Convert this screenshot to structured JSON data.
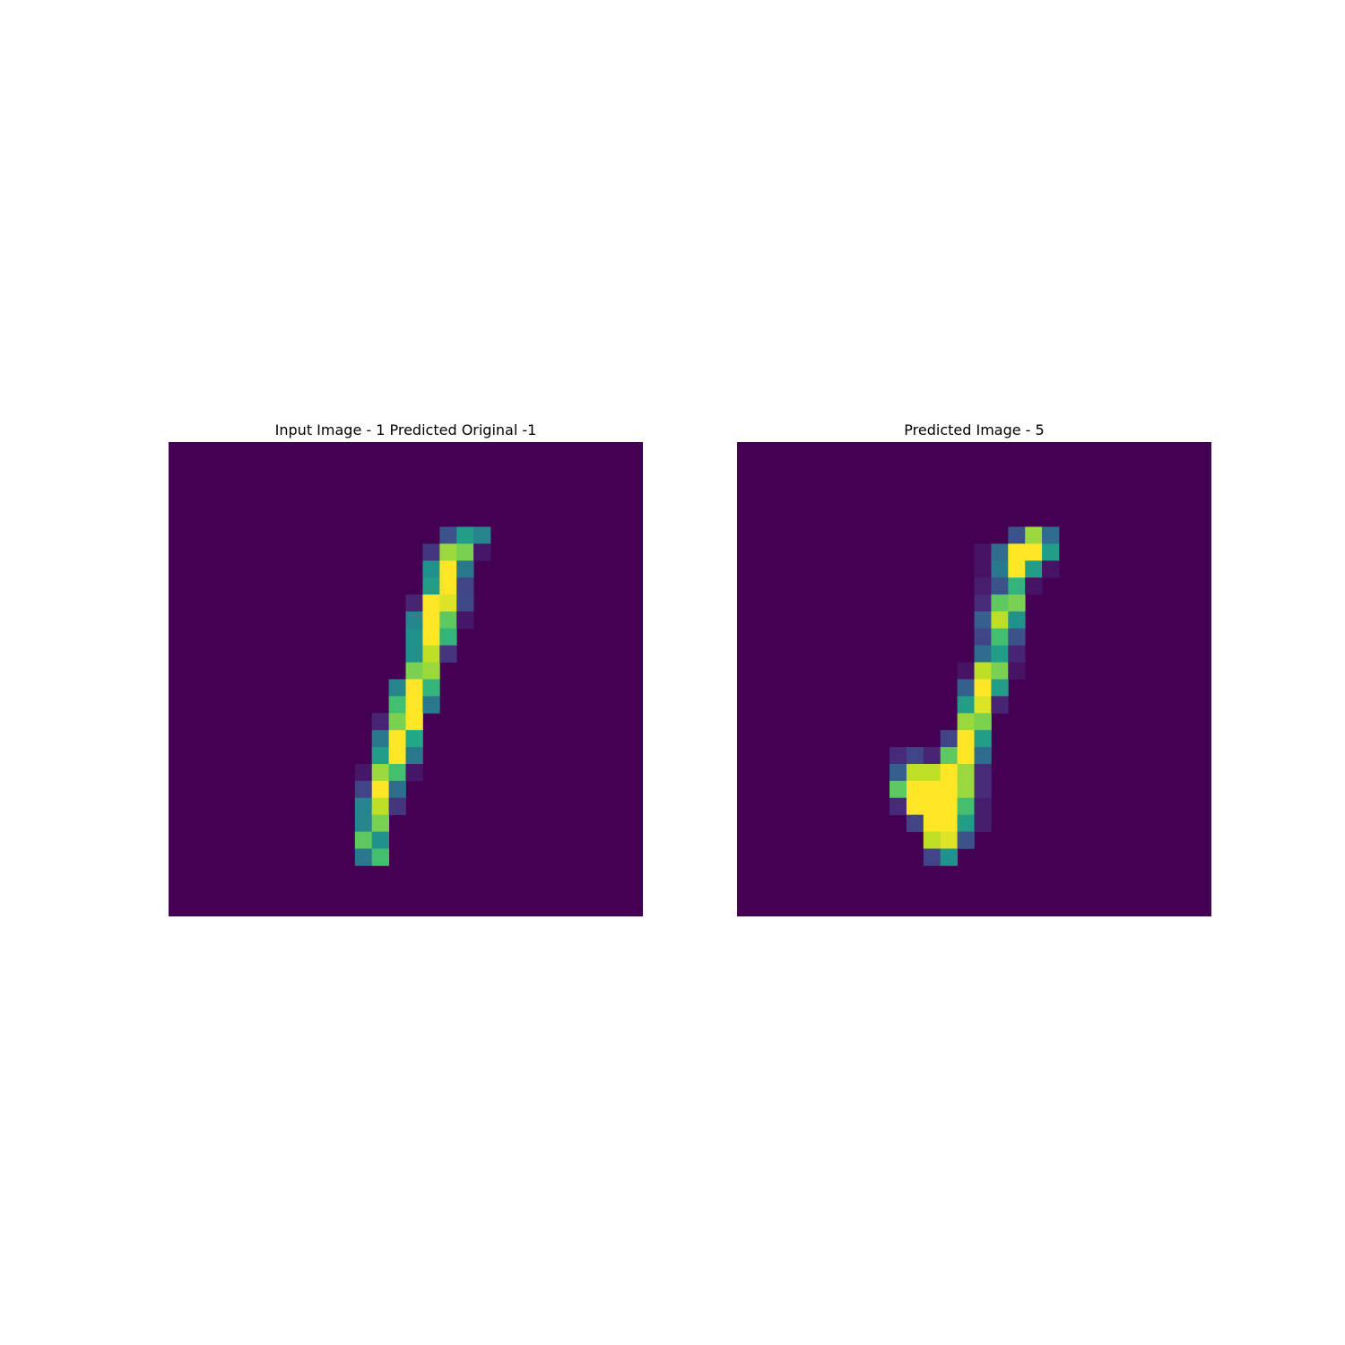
{
  "chart_data": [
    {
      "type": "heatmap",
      "title": "Input Image - 1 Predicted Original -1",
      "colormap": "viridis",
      "axes_visible": false,
      "grid": false,
      "shape": [
        28,
        28
      ],
      "value_range": [
        0,
        1
      ],
      "pixels": [
        {
          "r": 5,
          "c": 16,
          "v": 0.25
        },
        {
          "r": 5,
          "c": 17,
          "v": 0.55
        },
        {
          "r": 5,
          "c": 18,
          "v": 0.45
        },
        {
          "r": 6,
          "c": 15,
          "v": 0.15
        },
        {
          "r": 6,
          "c": 16,
          "v": 0.85
        },
        {
          "r": 6,
          "c": 17,
          "v": 0.8
        },
        {
          "r": 6,
          "c": 18,
          "v": 0.06
        },
        {
          "r": 7,
          "c": 15,
          "v": 0.5
        },
        {
          "r": 7,
          "c": 16,
          "v": 1.0
        },
        {
          "r": 7,
          "c": 17,
          "v": 0.4
        },
        {
          "r": 8,
          "c": 15,
          "v": 0.55
        },
        {
          "r": 8,
          "c": 16,
          "v": 1.0
        },
        {
          "r": 8,
          "c": 17,
          "v": 0.2
        },
        {
          "r": 9,
          "c": 14,
          "v": 0.1
        },
        {
          "r": 9,
          "c": 15,
          "v": 1.0
        },
        {
          "r": 9,
          "c": 16,
          "v": 0.95
        },
        {
          "r": 9,
          "c": 17,
          "v": 0.22
        },
        {
          "r": 10,
          "c": 14,
          "v": 0.45
        },
        {
          "r": 10,
          "c": 15,
          "v": 1.0
        },
        {
          "r": 10,
          "c": 16,
          "v": 0.75
        },
        {
          "r": 10,
          "c": 17,
          "v": 0.06
        },
        {
          "r": 11,
          "c": 14,
          "v": 0.5
        },
        {
          "r": 11,
          "c": 15,
          "v": 1.0
        },
        {
          "r": 11,
          "c": 16,
          "v": 0.65
        },
        {
          "r": 12,
          "c": 14,
          "v": 0.5
        },
        {
          "r": 12,
          "c": 15,
          "v": 0.9
        },
        {
          "r": 12,
          "c": 16,
          "v": 0.15
        },
        {
          "r": 13,
          "c": 14,
          "v": 0.8
        },
        {
          "r": 13,
          "c": 15,
          "v": 0.85
        },
        {
          "r": 14,
          "c": 13,
          "v": 0.45
        },
        {
          "r": 14,
          "c": 14,
          "v": 1.0
        },
        {
          "r": 14,
          "c": 15,
          "v": 0.65
        },
        {
          "r": 15,
          "c": 13,
          "v": 0.7
        },
        {
          "r": 15,
          "c": 14,
          "v": 1.0
        },
        {
          "r": 15,
          "c": 15,
          "v": 0.4
        },
        {
          "r": 16,
          "c": 12,
          "v": 0.1
        },
        {
          "r": 16,
          "c": 13,
          "v": 0.8
        },
        {
          "r": 16,
          "c": 14,
          "v": 1.0
        },
        {
          "r": 17,
          "c": 12,
          "v": 0.4
        },
        {
          "r": 17,
          "c": 13,
          "v": 1.0
        },
        {
          "r": 17,
          "c": 14,
          "v": 0.6
        },
        {
          "r": 18,
          "c": 12,
          "v": 0.55
        },
        {
          "r": 18,
          "c": 13,
          "v": 1.0
        },
        {
          "r": 18,
          "c": 14,
          "v": 0.4
        },
        {
          "r": 19,
          "c": 11,
          "v": 0.06
        },
        {
          "r": 19,
          "c": 12,
          "v": 0.85
        },
        {
          "r": 19,
          "c": 13,
          "v": 0.7
        },
        {
          "r": 19,
          "c": 14,
          "v": 0.06
        },
        {
          "r": 20,
          "c": 11,
          "v": 0.2
        },
        {
          "r": 20,
          "c": 12,
          "v": 1.0
        },
        {
          "r": 20,
          "c": 13,
          "v": 0.35
        },
        {
          "r": 21,
          "c": 11,
          "v": 0.45
        },
        {
          "r": 21,
          "c": 12,
          "v": 0.9
        },
        {
          "r": 21,
          "c": 13,
          "v": 0.15
        },
        {
          "r": 22,
          "c": 11,
          "v": 0.45
        },
        {
          "r": 22,
          "c": 12,
          "v": 0.8
        },
        {
          "r": 23,
          "c": 11,
          "v": 0.75
        },
        {
          "r": 23,
          "c": 12,
          "v": 0.5
        },
        {
          "r": 24,
          "c": 11,
          "v": 0.4
        },
        {
          "r": 24,
          "c": 12,
          "v": 0.7
        }
      ]
    },
    {
      "type": "heatmap",
      "title": "Predicted Image - 5",
      "colormap": "viridis",
      "axes_visible": false,
      "grid": false,
      "shape": [
        28,
        28
      ],
      "value_range": [
        0,
        1
      ],
      "pixels": [
        {
          "r": 5,
          "c": 16,
          "v": 0.25
        },
        {
          "r": 5,
          "c": 17,
          "v": 0.85
        },
        {
          "r": 5,
          "c": 18,
          "v": 0.35
        },
        {
          "r": 6,
          "c": 14,
          "v": 0.05
        },
        {
          "r": 6,
          "c": 15,
          "v": 0.35
        },
        {
          "r": 6,
          "c": 16,
          "v": 1.0
        },
        {
          "r": 6,
          "c": 17,
          "v": 1.0
        },
        {
          "r": 6,
          "c": 18,
          "v": 0.55
        },
        {
          "r": 7,
          "c": 14,
          "v": 0.05
        },
        {
          "r": 7,
          "c": 15,
          "v": 0.4
        },
        {
          "r": 7,
          "c": 16,
          "v": 1.0
        },
        {
          "r": 7,
          "c": 17,
          "v": 0.55
        },
        {
          "r": 7,
          "c": 18,
          "v": 0.05
        },
        {
          "r": 8,
          "c": 14,
          "v": 0.08
        },
        {
          "r": 8,
          "c": 15,
          "v": 0.25
        },
        {
          "r": 8,
          "c": 16,
          "v": 0.65
        },
        {
          "r": 8,
          "c": 17,
          "v": 0.05
        },
        {
          "r": 9,
          "c": 14,
          "v": 0.12
        },
        {
          "r": 9,
          "c": 15,
          "v": 0.75
        },
        {
          "r": 9,
          "c": 16,
          "v": 0.8
        },
        {
          "r": 10,
          "c": 14,
          "v": 0.3
        },
        {
          "r": 10,
          "c": 15,
          "v": 0.9
        },
        {
          "r": 10,
          "c": 16,
          "v": 0.5
        },
        {
          "r": 11,
          "c": 14,
          "v": 0.2
        },
        {
          "r": 11,
          "c": 15,
          "v": 0.7
        },
        {
          "r": 11,
          "c": 16,
          "v": 0.25
        },
        {
          "r": 12,
          "c": 14,
          "v": 0.35
        },
        {
          "r": 12,
          "c": 15,
          "v": 0.55
        },
        {
          "r": 12,
          "c": 16,
          "v": 0.1
        },
        {
          "r": 13,
          "c": 13,
          "v": 0.05
        },
        {
          "r": 13,
          "c": 14,
          "v": 0.9
        },
        {
          "r": 13,
          "c": 15,
          "v": 0.8
        },
        {
          "r": 13,
          "c": 16,
          "v": 0.05
        },
        {
          "r": 14,
          "c": 13,
          "v": 0.3
        },
        {
          "r": 14,
          "c": 14,
          "v": 1.0
        },
        {
          "r": 14,
          "c": 15,
          "v": 0.55
        },
        {
          "r": 15,
          "c": 13,
          "v": 0.55
        },
        {
          "r": 15,
          "c": 14,
          "v": 0.95
        },
        {
          "r": 15,
          "c": 15,
          "v": 0.1
        },
        {
          "r": 16,
          "c": 13,
          "v": 0.85
        },
        {
          "r": 16,
          "c": 14,
          "v": 0.8
        },
        {
          "r": 17,
          "c": 12,
          "v": 0.2
        },
        {
          "r": 17,
          "c": 13,
          "v": 1.0
        },
        {
          "r": 17,
          "c": 14,
          "v": 0.55
        },
        {
          "r": 18,
          "c": 9,
          "v": 0.12
        },
        {
          "r": 18,
          "c": 10,
          "v": 0.2
        },
        {
          "r": 18,
          "c": 11,
          "v": 0.1
        },
        {
          "r": 18,
          "c": 12,
          "v": 0.75
        },
        {
          "r": 18,
          "c": 13,
          "v": 1.0
        },
        {
          "r": 18,
          "c": 14,
          "v": 0.35
        },
        {
          "r": 19,
          "c": 9,
          "v": 0.3
        },
        {
          "r": 19,
          "c": 10,
          "v": 0.9
        },
        {
          "r": 19,
          "c": 11,
          "v": 0.9
        },
        {
          "r": 19,
          "c": 12,
          "v": 1.0
        },
        {
          "r": 19,
          "c": 13,
          "v": 0.85
        },
        {
          "r": 19,
          "c": 14,
          "v": 0.12
        },
        {
          "r": 20,
          "c": 9,
          "v": 0.75
        },
        {
          "r": 20,
          "c": 10,
          "v": 1.0
        },
        {
          "r": 20,
          "c": 11,
          "v": 1.0
        },
        {
          "r": 20,
          "c": 12,
          "v": 1.0
        },
        {
          "r": 20,
          "c": 13,
          "v": 0.85
        },
        {
          "r": 20,
          "c": 14,
          "v": 0.12
        },
        {
          "r": 21,
          "c": 9,
          "v": 0.12
        },
        {
          "r": 21,
          "c": 10,
          "v": 1.0
        },
        {
          "r": 21,
          "c": 11,
          "v": 1.0
        },
        {
          "r": 21,
          "c": 12,
          "v": 1.0
        },
        {
          "r": 21,
          "c": 13,
          "v": 0.7
        },
        {
          "r": 21,
          "c": 14,
          "v": 0.08
        },
        {
          "r": 22,
          "c": 10,
          "v": 0.2
        },
        {
          "r": 22,
          "c": 11,
          "v": 1.0
        },
        {
          "r": 22,
          "c": 12,
          "v": 1.0
        },
        {
          "r": 22,
          "c": 13,
          "v": 0.55
        },
        {
          "r": 22,
          "c": 14,
          "v": 0.08
        },
        {
          "r": 23,
          "c": 11,
          "v": 0.9
        },
        {
          "r": 23,
          "c": 12,
          "v": 0.95
        },
        {
          "r": 23,
          "c": 13,
          "v": 0.25
        },
        {
          "r": 24,
          "c": 11,
          "v": 0.2
        },
        {
          "r": 24,
          "c": 12,
          "v": 0.5
        }
      ]
    }
  ]
}
